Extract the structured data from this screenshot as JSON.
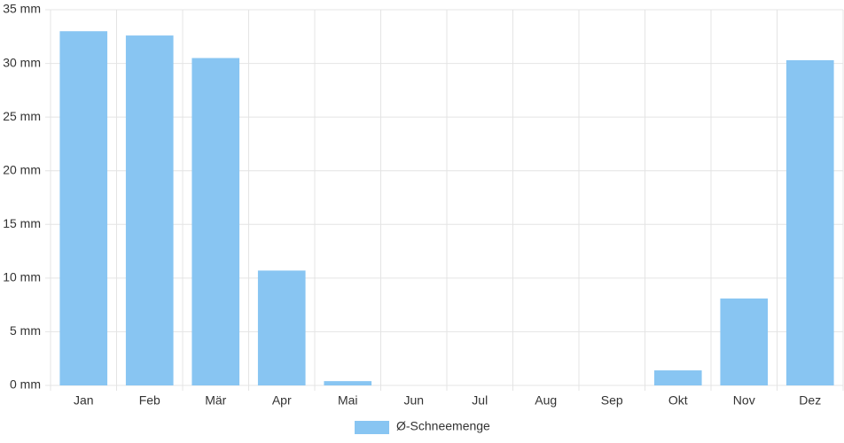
{
  "chart_data": {
    "type": "bar",
    "categories": [
      "Jan",
      "Feb",
      "Mär",
      "Apr",
      "Mai",
      "Jun",
      "Jul",
      "Aug",
      "Sep",
      "Okt",
      "Nov",
      "Dez"
    ],
    "series": [
      {
        "name": "Ø-Schneemenge",
        "color": "#88c5f2",
        "values": [
          33.0,
          32.6,
          30.5,
          10.7,
          0.4,
          0,
          0,
          0,
          0,
          1.4,
          8.1,
          30.3
        ]
      }
    ],
    "ylim": [
      0,
      35
    ],
    "yticks": [
      {
        "value": 0,
        "label": "0 mm"
      },
      {
        "value": 5,
        "label": "5 mm"
      },
      {
        "value": 10,
        "label": "10 mm"
      },
      {
        "value": 15,
        "label": "15 mm"
      },
      {
        "value": 20,
        "label": "20 mm"
      },
      {
        "value": 25,
        "label": "25 mm"
      },
      {
        "value": 30,
        "label": "30 mm"
      },
      {
        "value": 35,
        "label": "35 mm"
      }
    ],
    "grid": true,
    "legend": "bottom"
  }
}
